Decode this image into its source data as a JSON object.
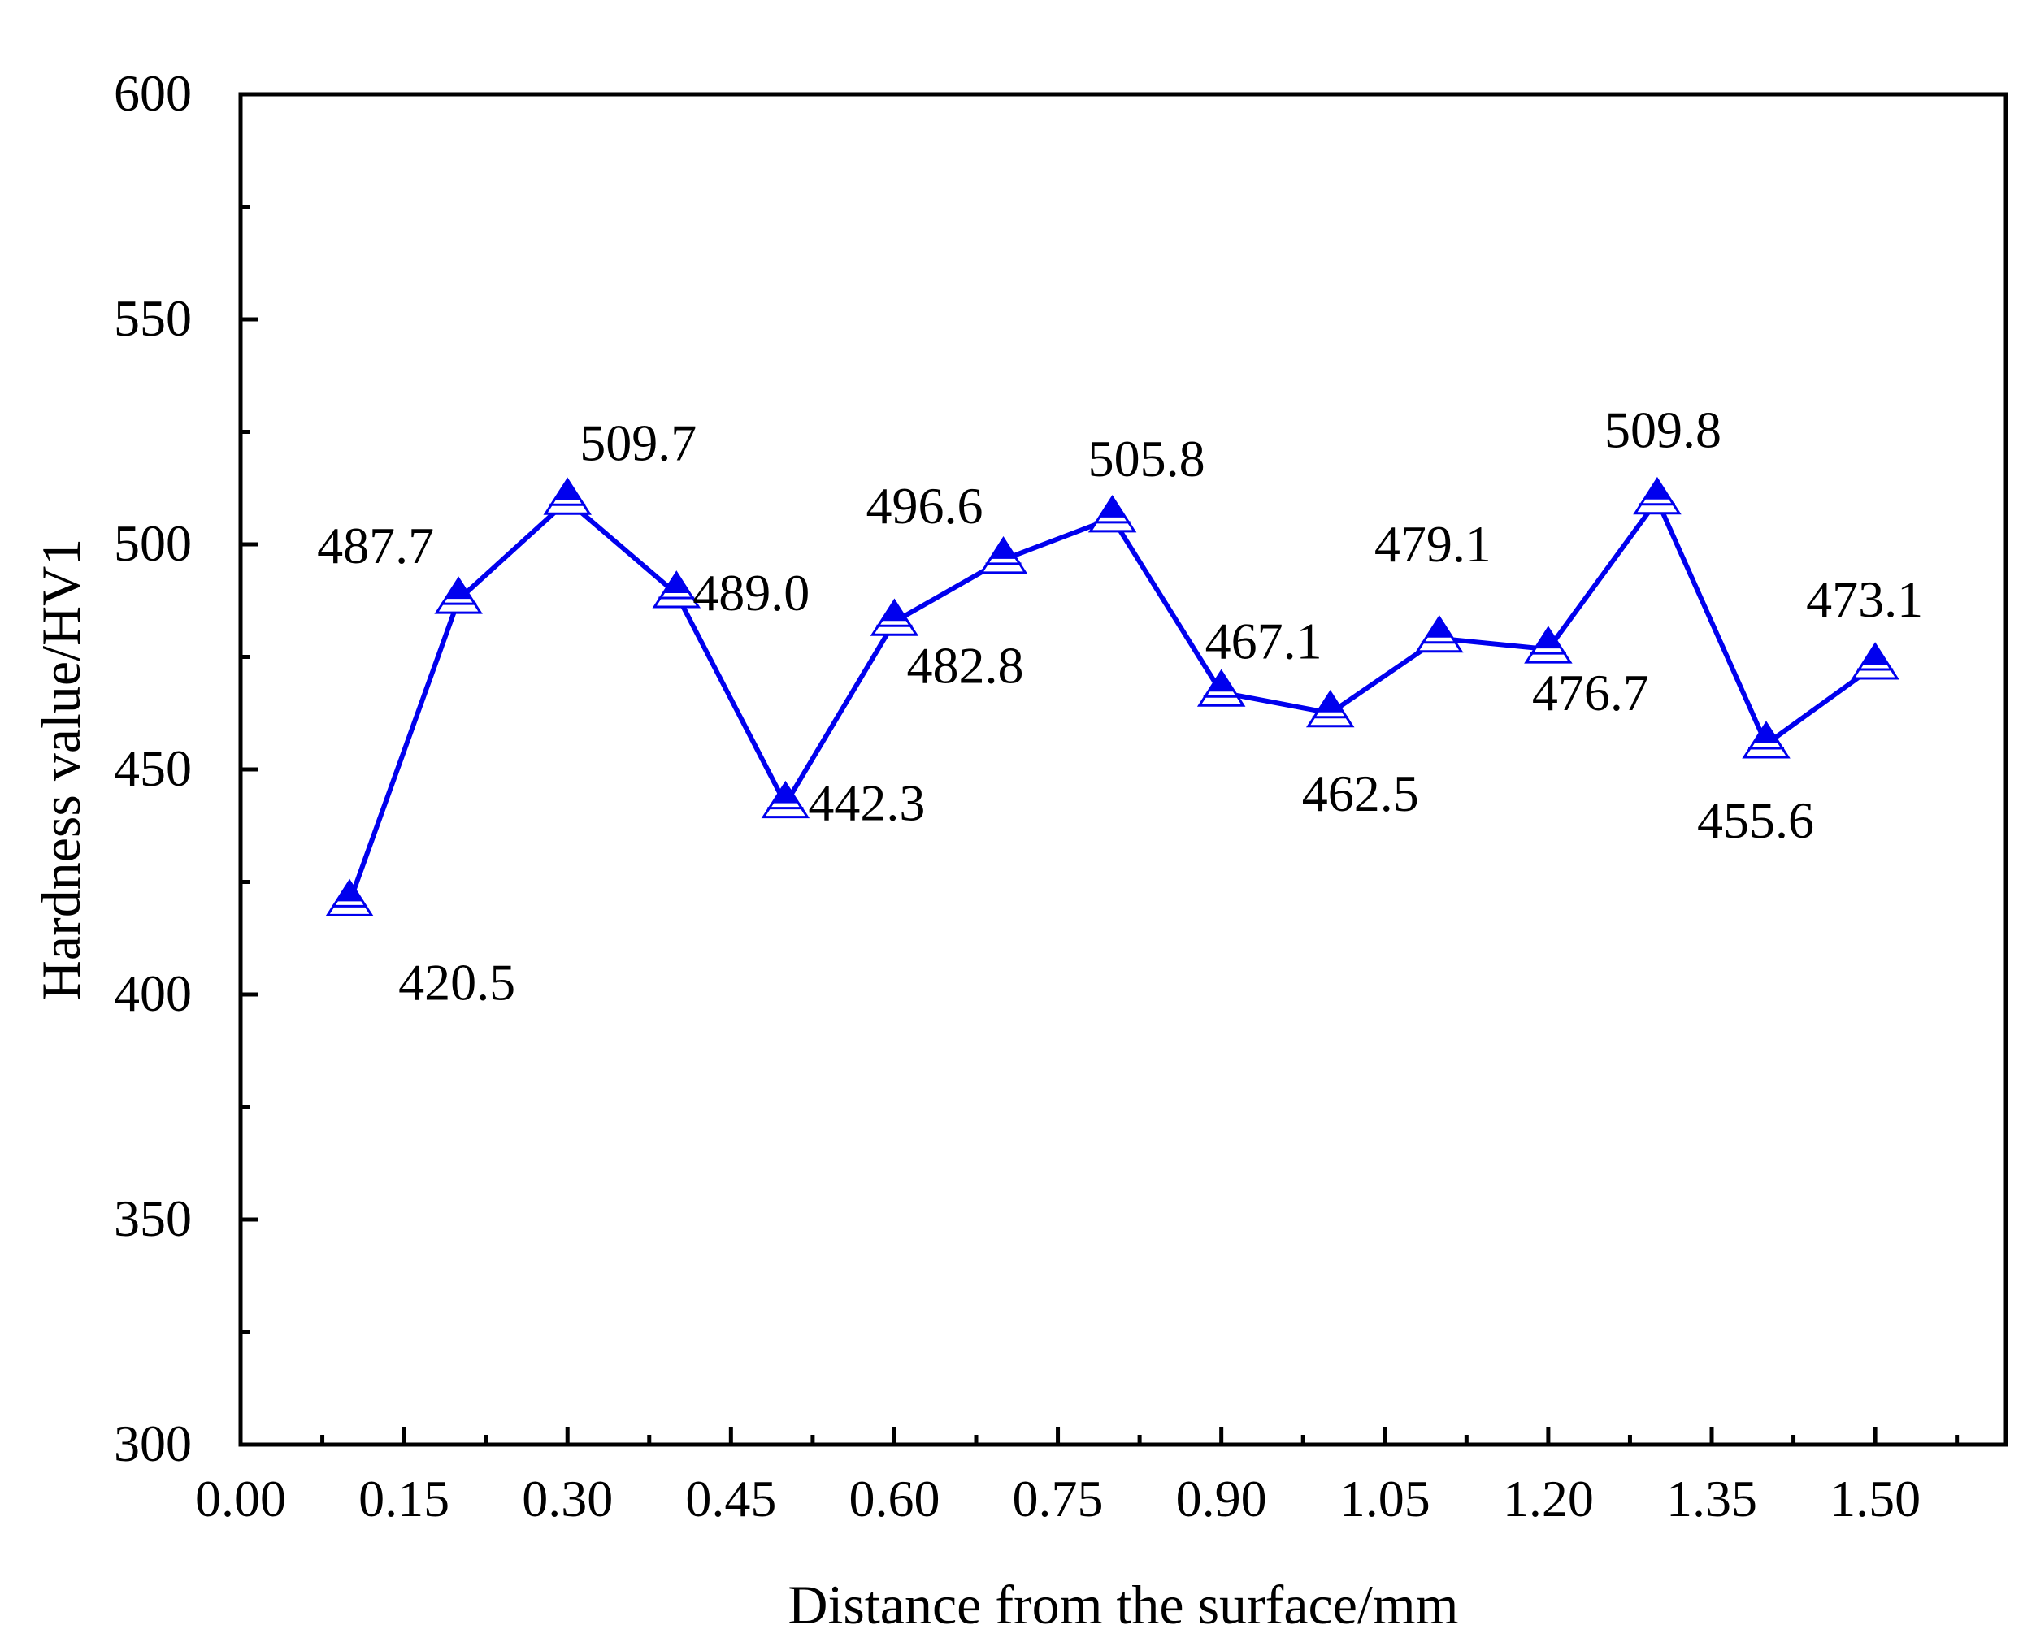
{
  "chart_data": {
    "type": "line",
    "title": "",
    "xlabel": "Distance from the surface/mm",
    "ylabel": "Hardness value/HV1",
    "xlim": [
      0.0,
      1.62
    ],
    "ylim": [
      300,
      600
    ],
    "x_ticks": [
      "0.00",
      "0.15",
      "0.30",
      "0.45",
      "0.60",
      "0.75",
      "0.90",
      "1.05",
      "1.20",
      "1.35",
      "1.50"
    ],
    "y_ticks": [
      "300",
      "350",
      "400",
      "450",
      "500",
      "550",
      "600"
    ],
    "grid": false,
    "legend": "none",
    "series": [
      {
        "x": [
          0.1,
          0.2,
          0.3,
          0.4,
          0.5,
          0.6,
          0.7,
          0.8,
          0.9,
          1.0,
          1.1,
          1.2,
          1.3,
          1.4,
          1.5
        ],
        "values": [
          420.5,
          487.7,
          509.7,
          489.0,
          442.3,
          482.8,
          496.6,
          505.8,
          467.1,
          462.5,
          479.1,
          476.7,
          509.8,
          455.6,
          473.1
        ],
        "labels": [
          "420.5",
          "487.7",
          "509.7",
          "489.0",
          "442.3",
          "482.8",
          "496.6",
          "505.8",
          "467.1",
          "462.5",
          "479.1",
          "476.7",
          "509.8",
          "455.6",
          "473.1"
        ],
        "color": "#0000ee",
        "marker": "triangle"
      }
    ]
  }
}
